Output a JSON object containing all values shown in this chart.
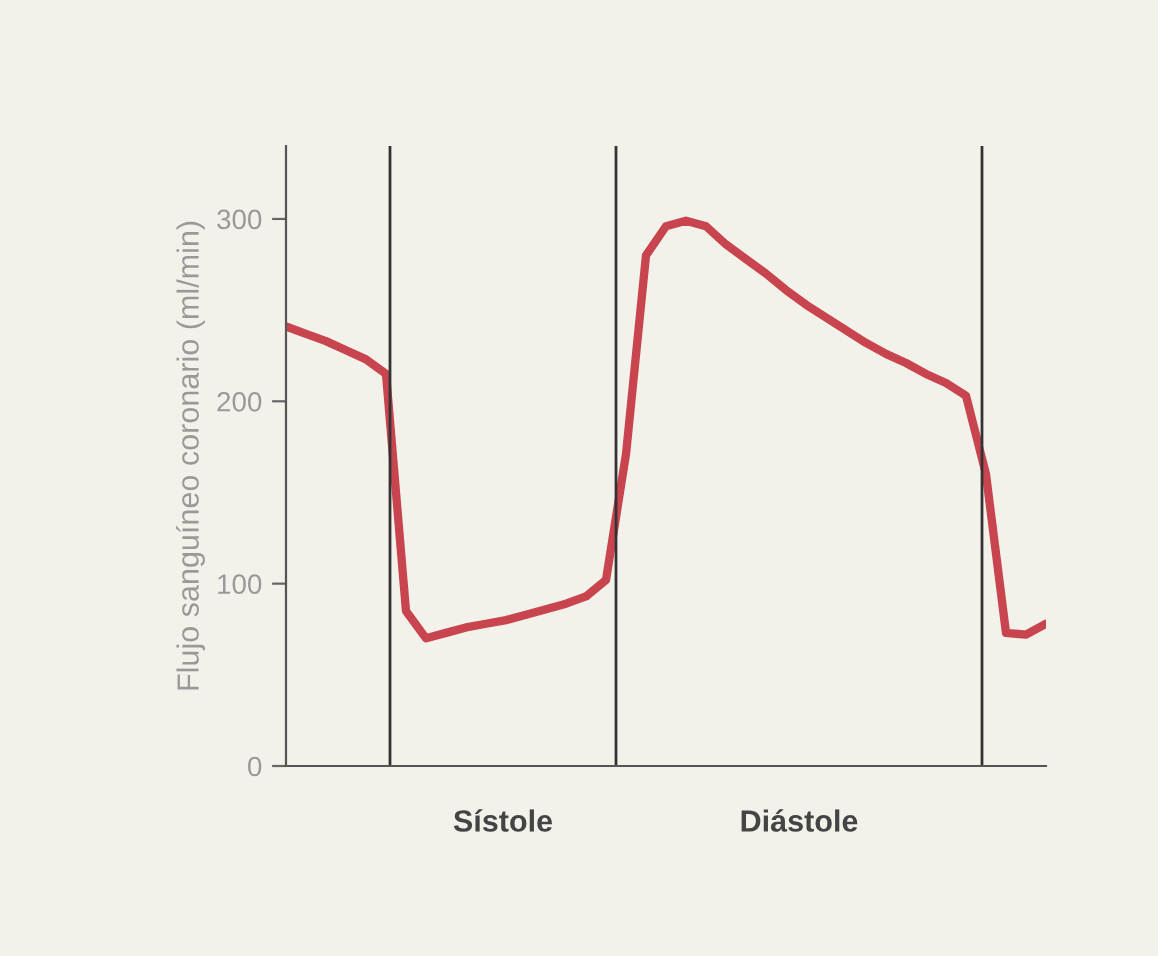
{
  "chart_data": {
    "type": "line",
    "ylabel": "Flujo sanguíneo coronario (ml/min)",
    "categories": [
      null,
      null,
      null,
      null,
      null,
      null,
      null,
      null,
      null,
      null,
      null,
      null,
      null,
      null,
      null,
      null,
      null,
      null,
      null,
      null,
      null,
      null,
      null,
      null,
      null,
      null,
      null,
      null,
      null,
      null,
      null,
      null,
      null,
      null,
      null,
      null,
      null,
      null,
      null
    ],
    "series": [
      {
        "color": "#c8454f",
        "values": [
          241,
          237,
          233,
          228,
          223,
          215,
          85,
          70,
          73,
          76,
          78,
          80,
          83,
          86,
          89,
          93,
          102,
          171,
          280,
          296,
          299,
          296,
          286,
          278,
          270,
          261,
          253,
          246,
          239,
          232,
          226,
          221,
          215,
          210,
          203,
          160,
          73,
          72,
          78
        ]
      }
    ],
    "ylim": [
      0,
      340
    ],
    "yticks": [
      0,
      100,
      200,
      300
    ],
    "tick_labels": "y",
    "grid": false,
    "legend": false,
    "marker": "none",
    "line_style": "solid",
    "annotations": [
      "Sístole",
      "Diástole"
    ]
  }
}
